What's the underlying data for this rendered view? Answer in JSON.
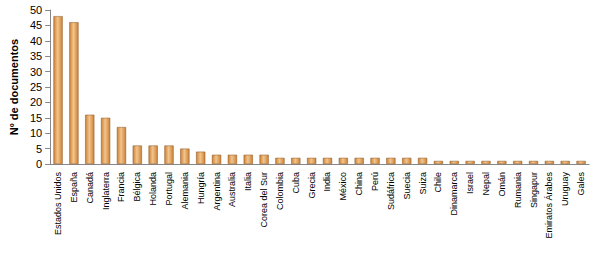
{
  "chart_data": {
    "type": "bar",
    "y_label": "Nº de documentos",
    "categories": [
      "Estados Unidos",
      "España",
      "Canadá",
      "Inglaterra",
      "Francia",
      "Bélgica",
      "Holanda",
      "Portugal",
      "Alemania",
      "Hungría",
      "Argentina",
      "Australia",
      "Italia",
      "Corea del Sur",
      "Colombia",
      "Cuba",
      "Grecia",
      "India",
      "México",
      "China",
      "Perú",
      "Sudáfrica",
      "Suecia",
      "Suiza",
      "Chile",
      "Dinamarca",
      "Israel",
      "Nepal",
      "Omán",
      "Rumania",
      "Singapur",
      "Emiratos Árabes",
      "Uruguay",
      "Gales"
    ],
    "values": [
      48,
      46,
      16,
      15,
      12,
      6,
      6,
      6,
      5,
      4,
      3,
      3,
      3,
      3,
      2,
      2,
      2,
      2,
      2,
      2,
      2,
      2,
      2,
      2,
      1,
      1,
      1,
      1,
      1,
      1,
      1,
      1,
      1,
      1
    ],
    "color": "#cc8236",
    "ylim": [
      0,
      50
    ],
    "yticks": [
      0,
      5,
      10,
      15,
      20,
      25,
      30,
      35,
      40,
      45,
      50
    ],
    "grid": false
  }
}
